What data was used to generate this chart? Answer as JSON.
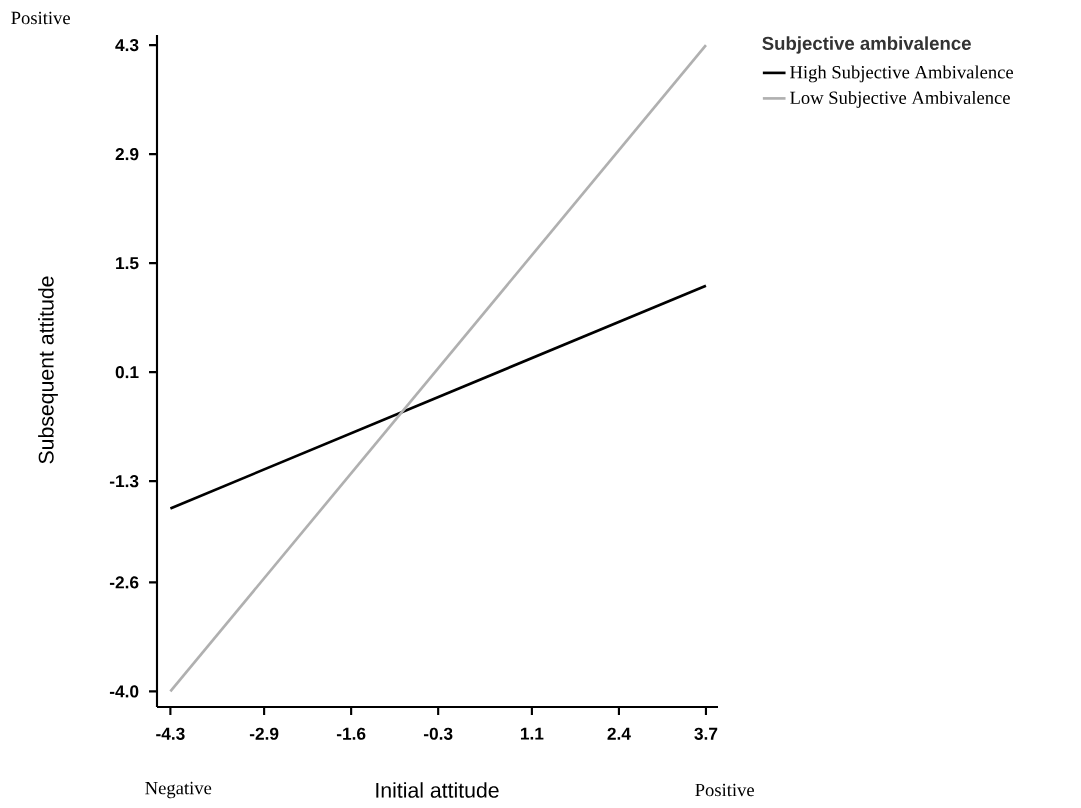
{
  "chart_data": {
    "type": "line",
    "xlabel": "Initial attitude",
    "ylabel": "Subsequent attitude",
    "legend_title": "Subjective ambivalence",
    "annotations": [
      "Positive",
      "Negative",
      "Positive"
    ],
    "x": [
      -4.3,
      3.7
    ],
    "series": [
      {
        "name": "High Subjective Ambivalence",
        "color": "#000000",
        "values": [
          -1.65,
          1.21
        ]
      },
      {
        "name": "Low Subjective Ambivalence",
        "color": "#b0b0b0",
        "values": [
          -4.0,
          4.3
        ]
      }
    ],
    "xlim": [
      -4.5,
      3.88
    ],
    "ylim": [
      -4.2,
      4.43
    ],
    "xticks": [
      -4.3,
      -2.9,
      -1.6,
      -0.3,
      1.1,
      2.4,
      3.7
    ],
    "yticks": [
      {
        "value": -4.0,
        "label": "-4.0"
      },
      -2.6,
      -1.3,
      0.1,
      1.5,
      2.9,
      4.3
    ],
    "grid": false,
    "legend": "top right",
    "marker": "none",
    "line_style": "solid"
  }
}
